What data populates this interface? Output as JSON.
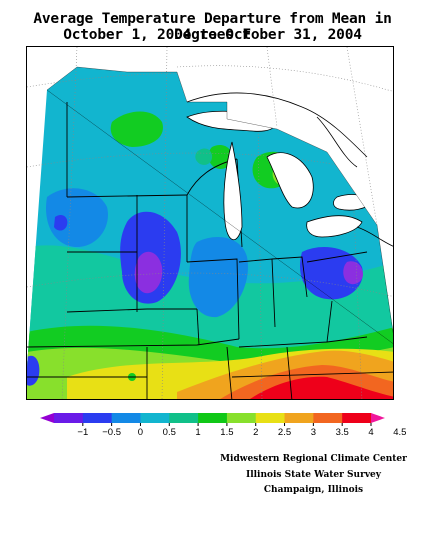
{
  "title": {
    "line1": "Average Temperature Departure from Mean in Degrees F",
    "line2": "October 1, 2004 to October 31, 2004"
  },
  "legend": {
    "unit": "Degrees F",
    "ticks": [
      "−1",
      "−0.5",
      "0",
      "0.5",
      "1",
      "1.5",
      "2",
      "2.5",
      "3",
      "3.5",
      "4",
      "4.5"
    ],
    "colors": [
      "#9400d3",
      "#6a1be8",
      "#2b3cf0",
      "#1389e6",
      "#12b5cf",
      "#10c089",
      "#10c817",
      "#88e02c",
      "#e8e015",
      "#f0a41e",
      "#f26620",
      "#ee001a",
      "#f0179c"
    ]
  },
  "map": {
    "palette": {
      "purple": "#8b2fe0",
      "blue": "#2b55f0",
      "mid_blue": "#1b8ee6",
      "teal": "#17b8c7",
      "aqua": "#12c8a0",
      "green": "#12cc22",
      "light_green": "#8ee02c",
      "yellow": "#e8e015",
      "orange": "#f0a41e",
      "dark_orange": "#f26620",
      "red": "#ee001a",
      "magenta": "#f0179c"
    }
  },
  "credits": {
    "line1": "Midwestern Regional Climate Center",
    "line2": "Illinois State Water Survey",
    "line3": "Champaign, Illinois"
  }
}
